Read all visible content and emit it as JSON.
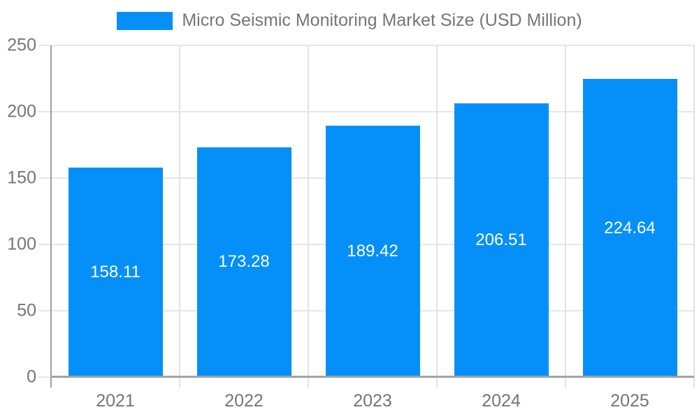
{
  "chart_data": {
    "type": "bar",
    "title": "Micro Seismic Monitoring Market Size (USD Million)",
    "legend_label": "Micro Seismic Monitoring Market Size (USD Million)",
    "legend_position": "top",
    "categories": [
      "2021",
      "2022",
      "2023",
      "2024",
      "2025"
    ],
    "values": [
      158.11,
      173.28,
      189.42,
      206.51,
      224.64
    ],
    "value_labels": [
      "158.11",
      "173.28",
      "189.42",
      "206.51",
      "224.64"
    ],
    "xlabel": "",
    "ylabel": "",
    "ylim": [
      0,
      250
    ],
    "yticks": [
      0,
      50,
      100,
      150,
      200,
      250
    ],
    "grid": true,
    "colors": {
      "bar": "#0590f9",
      "grid": "#e6e6e6",
      "axis": "#a3a3a3",
      "tick_text": "#757575",
      "legend_text": "#757575",
      "data_label": "#ffffff",
      "background": "#ffffff"
    }
  }
}
